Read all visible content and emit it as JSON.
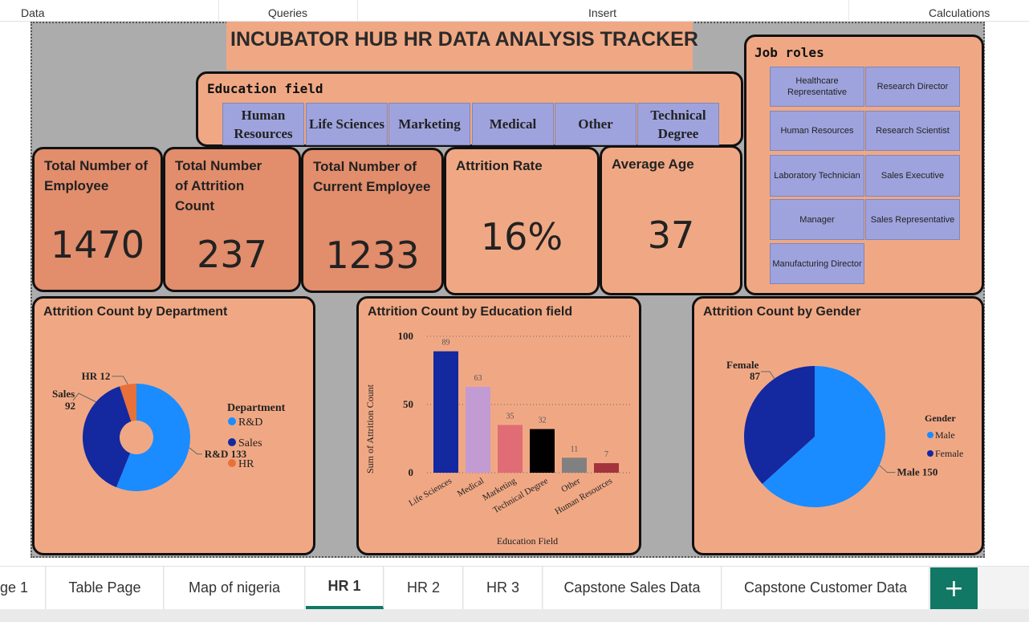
{
  "ribbon": {
    "data": "Data",
    "queries": "Queries",
    "insert": "Insert",
    "calculations": "Calculations"
  },
  "title": "INCUBATOR HUB HR DATA ANALYSIS TRACKER",
  "education_slicer": {
    "title": "Education field",
    "items": [
      "Human Resources",
      "Life Sciences",
      "Marketing",
      "Medical",
      "Other",
      "Technical Degree"
    ]
  },
  "job_slicer": {
    "title": "Job roles",
    "items": [
      "Healthcare Representative",
      "Research Director",
      "Human Resources",
      "Research Scientist",
      "Laboratory Technician",
      "Sales Executive",
      "Manager",
      "Sales Representative",
      "Manufacturing Director"
    ]
  },
  "kpis": {
    "total_employee": {
      "label": "Total Number of Employee",
      "value": "1470"
    },
    "attrition_count": {
      "label": "Total Number of Attrition Count",
      "value": "237"
    },
    "current_employee": {
      "label": "Total Number of Current Employee",
      "value": "1233"
    },
    "attrition_rate": {
      "label": "Attrition Rate",
      "value": "16%"
    },
    "average_age": {
      "label": "Average Age",
      "value": "37"
    }
  },
  "colors": {
    "panel": "#f0a884",
    "slicer_button": "#9ea3dd",
    "accent_tab": "#117865"
  },
  "chart_data": [
    {
      "type": "pie",
      "variant": "donut",
      "title": "Attrition Count by Department",
      "legend_title": "Department",
      "legend_position": "right",
      "categories": [
        "R&D",
        "Sales",
        "HR"
      ],
      "values": [
        133,
        92,
        12
      ],
      "colors": [
        "#1a8cff",
        "#1428a0",
        "#e8703a"
      ],
      "data_labels": [
        "R&D 133",
        "Sales 92",
        "HR 12"
      ]
    },
    {
      "type": "bar",
      "title": "Attrition Count by Education field",
      "xlabel": "Education Field",
      "ylabel": "Sum of Attrition Count",
      "ylim": [
        0,
        100
      ],
      "yticks": [
        "0",
        "50",
        "100"
      ],
      "grid": true,
      "categories": [
        "Life Sciences",
        "Medical",
        "Marketing",
        "Technical Degree",
        "Other",
        "Human Resources"
      ],
      "values": [
        89,
        63,
        35,
        32,
        11,
        7
      ],
      "colors": [
        "#1428a0",
        "#c39bd3",
        "#e06c75",
        "#000000",
        "#808080",
        "#a3333d"
      ]
    },
    {
      "type": "pie",
      "title": "Attrition Count by Gender",
      "legend_title": "Gender",
      "legend_position": "right",
      "categories": [
        "Male",
        "Female"
      ],
      "values": [
        150,
        87
      ],
      "colors": [
        "#1a8cff",
        "#1428a0"
      ],
      "data_labels": [
        "Male 150",
        "Female 87"
      ]
    }
  ],
  "tabs": [
    "ge 1",
    "Table Page",
    "Map of nigeria",
    "HR 1",
    "HR 2",
    "HR 3",
    "Capstone Sales Data",
    "Capstone Customer Data"
  ],
  "active_tab": "HR 1",
  "add_tab_glyph": "+"
}
